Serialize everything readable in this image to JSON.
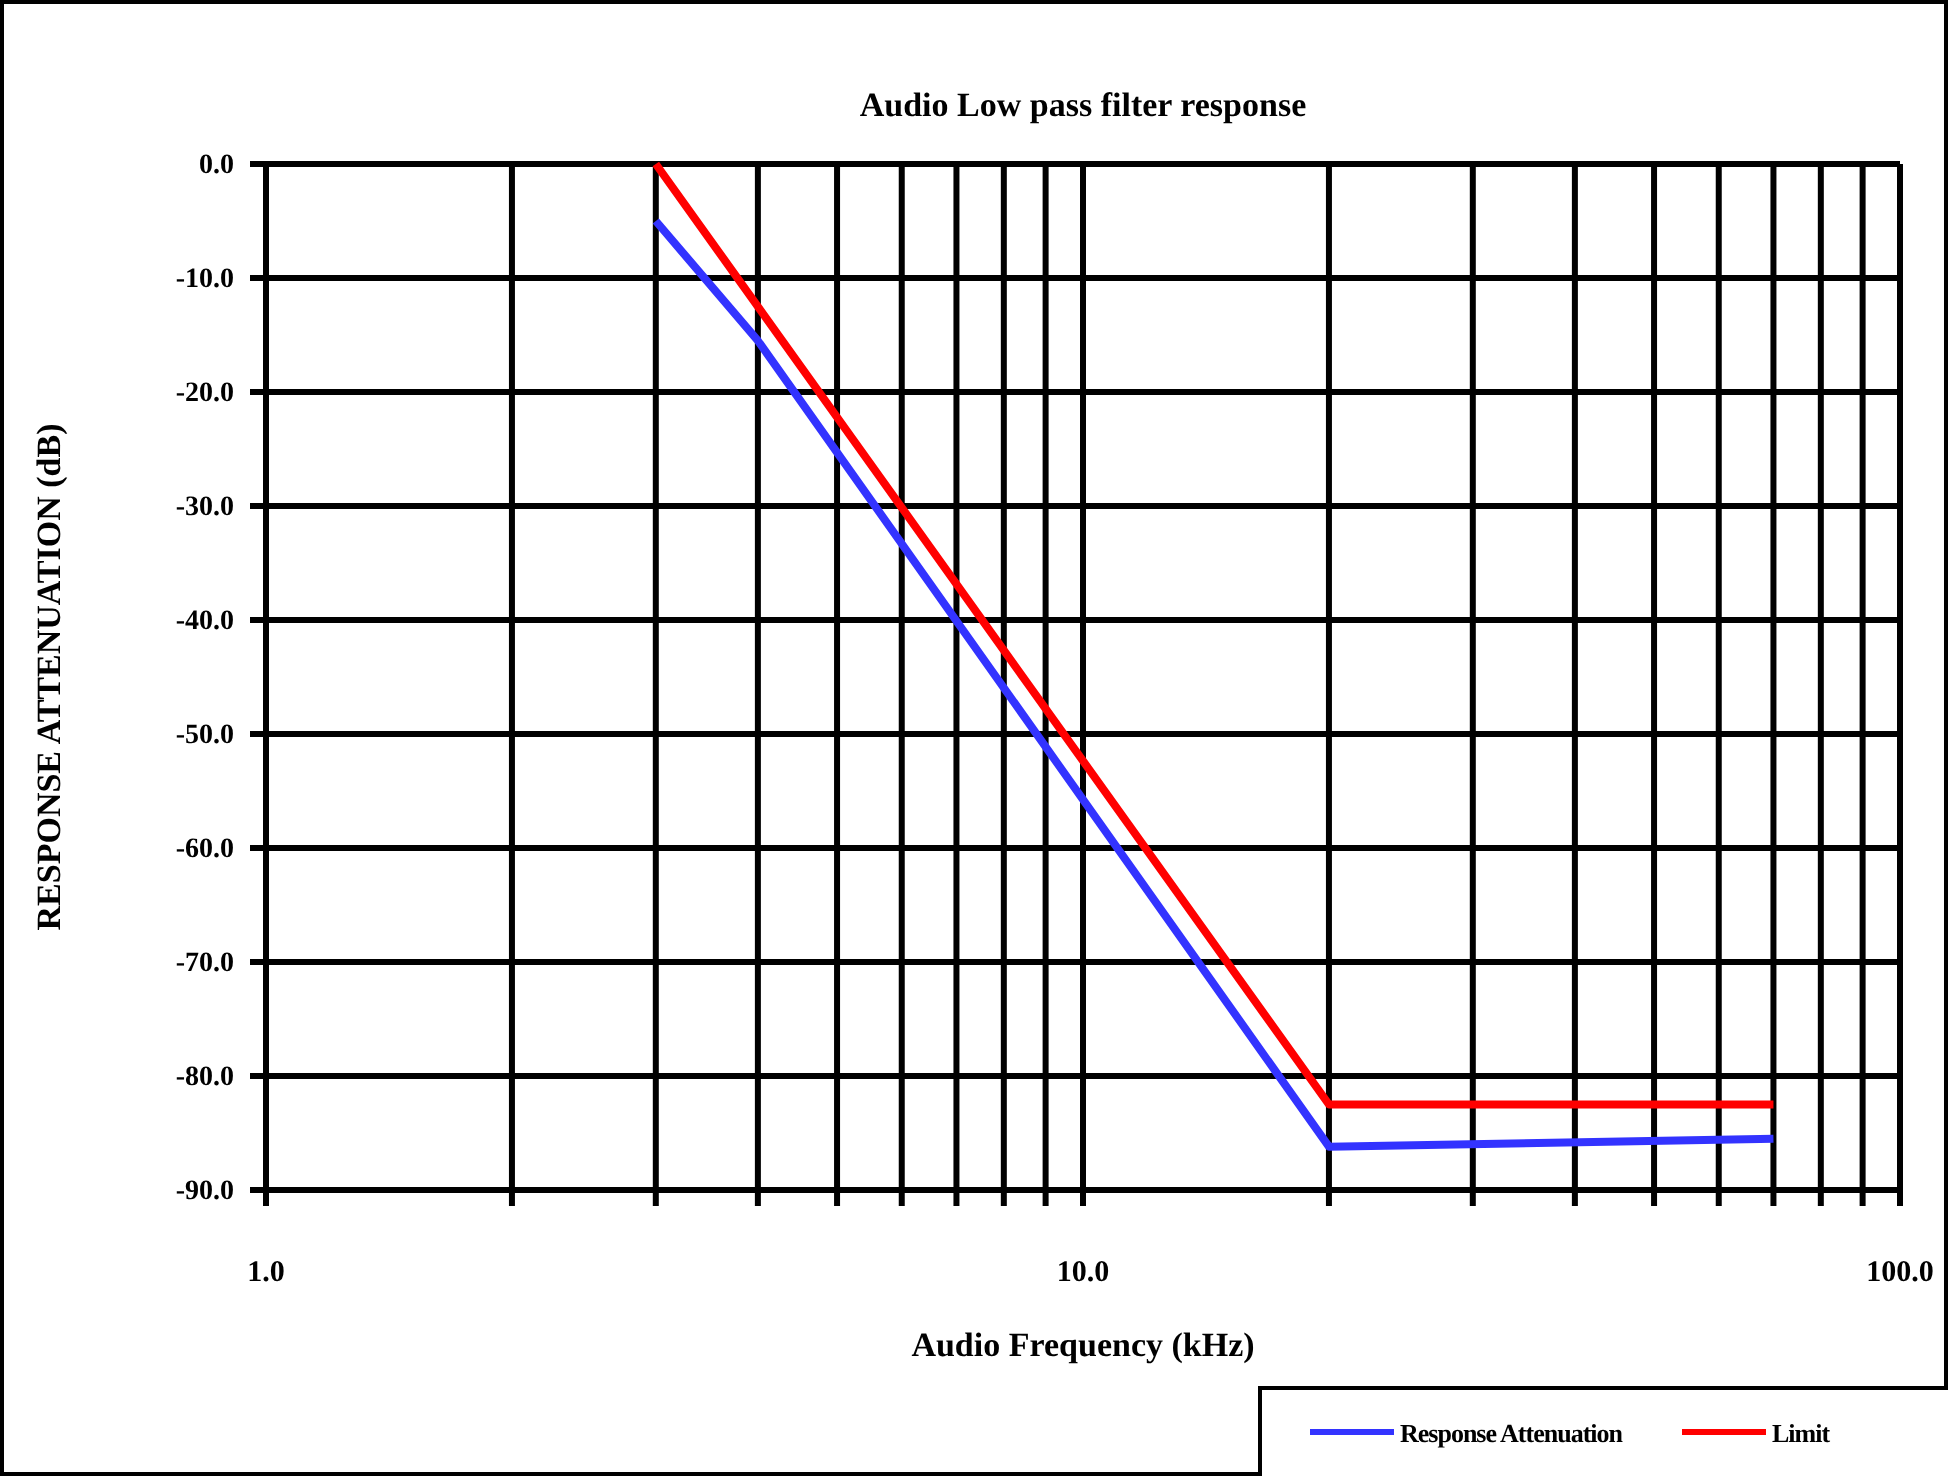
{
  "chart_data": {
    "type": "line",
    "title": "Audio Low pass filter response",
    "xlabel": "Audio Frequency (kHz)",
    "ylabel": "RESPONSE ATTENUATION (dB)",
    "log": "x",
    "xlim": [
      1,
      100
    ],
    "xticks": [
      {
        "value": 1,
        "label": "1.0"
      },
      {
        "value": 10,
        "label": "10.0"
      },
      {
        "value": 100,
        "label": "100.0"
      }
    ],
    "ylim": [
      -90,
      0
    ],
    "yticks": [
      {
        "value": 0,
        "label": "0.0"
      },
      {
        "value": -10,
        "label": "-10.0"
      },
      {
        "value": -20,
        "label": "-20.0"
      },
      {
        "value": -30,
        "label": "-30.0"
      },
      {
        "value": -40,
        "label": "-40.0"
      },
      {
        "value": -50,
        "label": "-50.0"
      },
      {
        "value": -60,
        "label": "-60.0"
      },
      {
        "value": -70,
        "label": "-70.0"
      },
      {
        "value": -80,
        "label": "-80.0"
      },
      {
        "value": -90,
        "label": "-90.0"
      }
    ],
    "grid": true,
    "legend": "bottom right",
    "marker": "none",
    "line_style": "solid",
    "series": [
      {
        "name": "Response Attenuation",
        "color": "#3333ff",
        "x": [
          3,
          4,
          20,
          70
        ],
        "values": [
          -5,
          -15.5,
          -86.2,
          -85.5
        ]
      },
      {
        "name": "Limit",
        "color": "#ff0000",
        "x": [
          3,
          20,
          70
        ],
        "values": [
          0,
          -82.5,
          -82.5
        ]
      }
    ]
  }
}
